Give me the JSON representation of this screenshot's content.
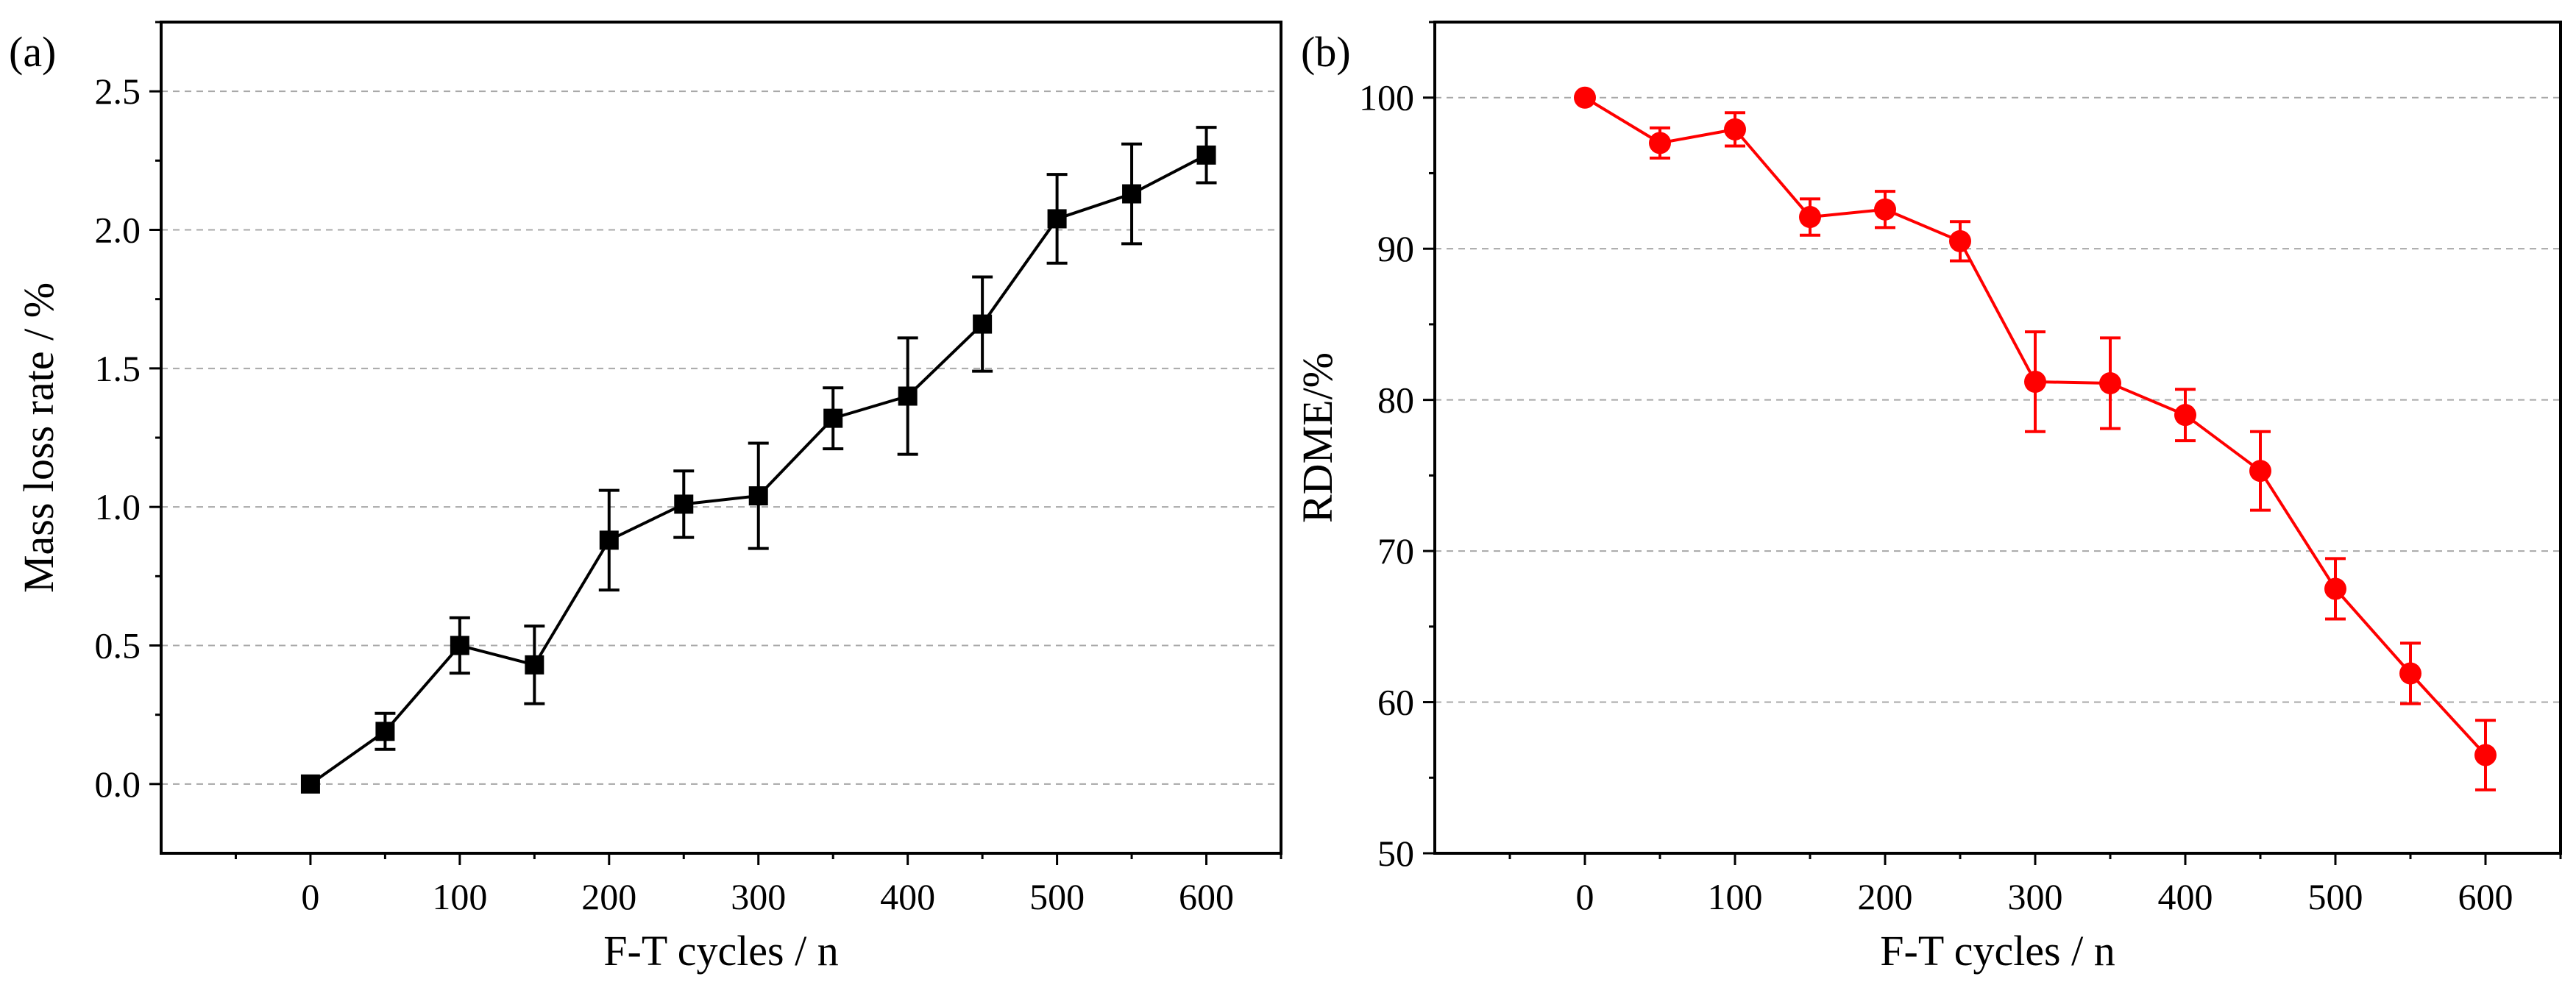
{
  "chart_data": [
    {
      "panel_label": "(a)",
      "type": "line",
      "xlabel": "F-T cycles / n",
      "ylabel": "Mass loss rate / %",
      "xlim": [
        -100,
        650
      ],
      "ylim": [
        -0.25,
        2.75
      ],
      "xticks": [
        0,
        100,
        200,
        300,
        400,
        500,
        600
      ],
      "yticks": [
        0.0,
        0.5,
        1.0,
        1.5,
        2.0,
        2.5
      ],
      "ytick_labels": [
        "0.0",
        "0.5",
        "1.0",
        "1.5",
        "2.0",
        "2.5"
      ],
      "grid": "horizontal dashed",
      "color": "#000000",
      "marker": "square",
      "series": [
        {
          "name": "Mass loss rate",
          "x": [
            0,
            50,
            100,
            150,
            200,
            250,
            300,
            350,
            400,
            450,
            500,
            550,
            600
          ],
          "values": [
            0.0,
            0.19,
            0.5,
            0.43,
            0.88,
            1.01,
            1.04,
            1.32,
            1.4,
            1.66,
            2.04,
            2.13,
            2.27
          ],
          "errors": [
            0.0,
            0.065,
            0.1,
            0.14,
            0.18,
            0.12,
            0.19,
            0.11,
            0.21,
            0.17,
            0.16,
            0.18,
            0.1
          ]
        }
      ]
    },
    {
      "panel_label": "(b)",
      "type": "line",
      "xlabel": "F-T cycles / n",
      "ylabel": "RDME/%",
      "xlim": [
        -100,
        650
      ],
      "ylim": [
        50,
        105
      ],
      "xticks": [
        0,
        100,
        200,
        300,
        400,
        500,
        600
      ],
      "yticks": [
        50,
        60,
        70,
        80,
        90,
        100
      ],
      "ytick_labels": [
        "50",
        "60",
        "70",
        "80",
        "90",
        "100"
      ],
      "grid": "horizontal dashed",
      "color": "#ff0000",
      "marker": "circle",
      "series": [
        {
          "name": "RDME",
          "x": [
            0,
            50,
            100,
            150,
            200,
            250,
            300,
            350,
            400,
            450,
            500,
            550,
            600
          ],
          "values": [
            100.0,
            97.0,
            97.9,
            92.1,
            92.6,
            90.5,
            81.2,
            81.1,
            79.0,
            75.3,
            67.5,
            61.9,
            56.5
          ],
          "errors": [
            0.0,
            1.0,
            1.1,
            1.2,
            1.2,
            1.3,
            3.3,
            3.0,
            1.7,
            2.6,
            2.0,
            2.0,
            2.3
          ]
        }
      ]
    }
  ]
}
